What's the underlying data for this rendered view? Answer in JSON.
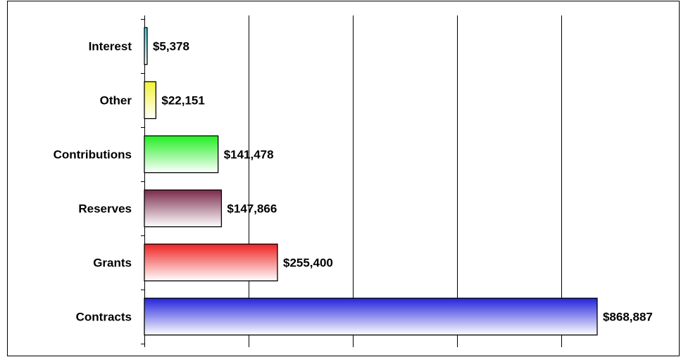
{
  "chart_data": {
    "type": "bar",
    "orientation": "horizontal",
    "title": "",
    "xlabel": "",
    "ylabel": "",
    "grid": true,
    "xlim": [
      0,
      1000000
    ],
    "x_gridlines": [
      200000,
      400000,
      600000,
      800000
    ],
    "categories": [
      "Interest",
      "Other",
      "Contributions",
      "Reserves",
      "Grants",
      "Contracts"
    ],
    "values": [
      5378,
      22151,
      141478,
      147866,
      255400,
      868887
    ],
    "value_labels": [
      "$5,378",
      "$22,151",
      "$141,478",
      "$147,866",
      "$255,400",
      "$868,887"
    ],
    "colors": [
      "#33d6e6",
      "#f2f233",
      "#22ee22",
      "#7a2a4a",
      "#ee2222",
      "#2222dd"
    ]
  }
}
